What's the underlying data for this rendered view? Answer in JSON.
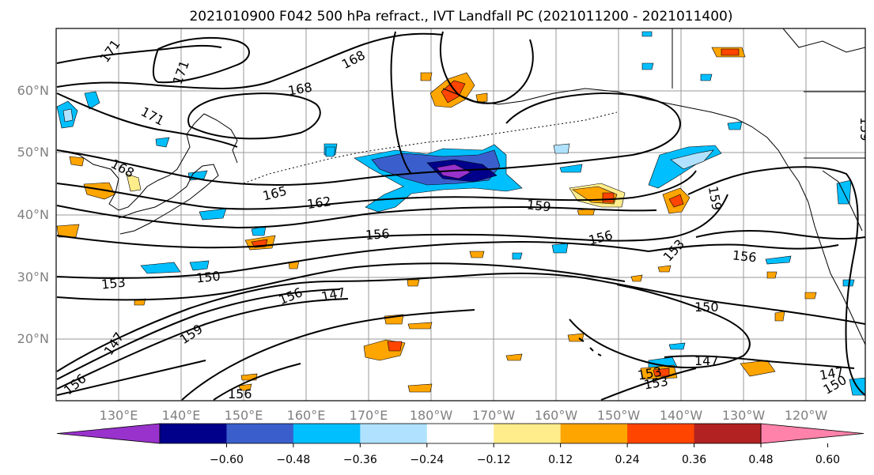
{
  "title": "2021010900 F042 500 hPa refract., IVT Landfall PC (2021011200 - 2021011400)",
  "lon_ticks": [
    "130°E",
    "140°E",
    "150°E",
    "160°E",
    "170°E",
    "180°W",
    "170°W",
    "160°W",
    "150°W",
    "140°W",
    "130°W",
    "120°W"
  ],
  "lat_ticks": [
    "60°N",
    "50°N",
    "40°N",
    "30°N",
    "20°N"
  ],
  "colorbar": {
    "ticks": [
      "−0.60",
      "−0.48",
      "−0.36",
      "−0.24",
      "−0.12",
      "0.12",
      "0.24",
      "0.36",
      "0.48",
      "0.60"
    ],
    "colors": [
      "#9932cc",
      "#00008b",
      "#3a5fcd",
      "#00bfff",
      "#b0e2ff",
      "#ffffff",
      "#ffec8b",
      "#ffa500",
      "#ff4500",
      "#b22222",
      "#ff82ab"
    ]
  },
  "contour_labels": [
    "171",
    "171",
    "168",
    "168",
    "171",
    "168",
    "165",
    "162",
    "159",
    "156",
    "156",
    "153",
    "150",
    "156",
    "147",
    "159",
    "147",
    "156",
    "159",
    "153",
    "156",
    "150",
    "147",
    "153",
    "153",
    "147",
    "150",
    "159",
    "156"
  ]
}
